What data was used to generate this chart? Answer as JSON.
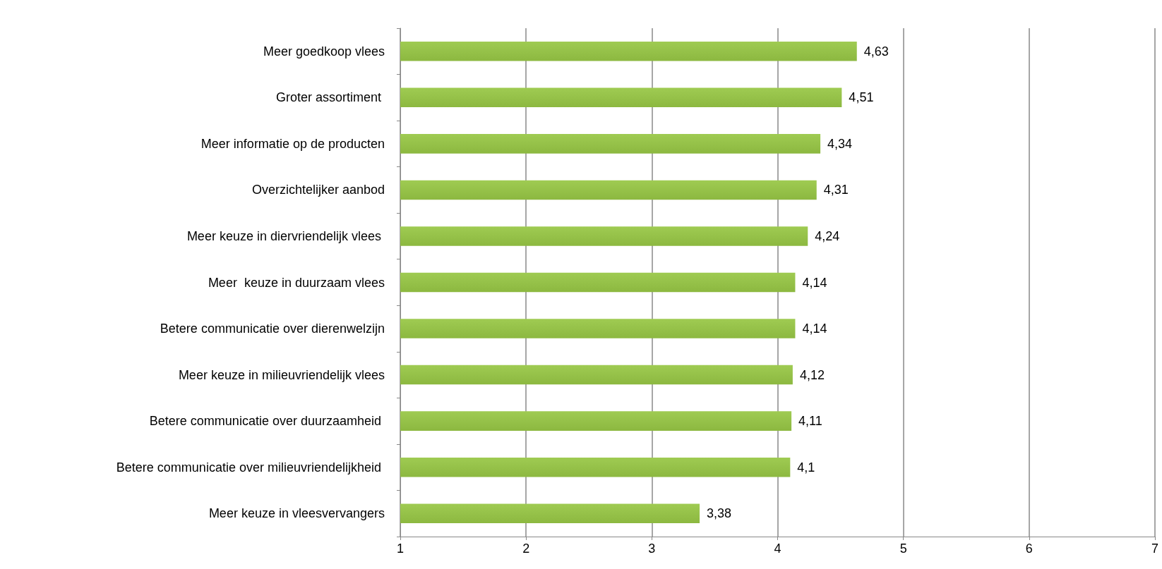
{
  "chart_data": {
    "type": "bar",
    "orientation": "horizontal",
    "categories": [
      "Meer goedkoop vlees",
      "Groter assortiment ",
      "Meer informatie op de producten",
      "Overzichtelijker aanbod",
      "Meer keuze in diervriendelijk vlees ",
      "Meer  keuze in duurzaam vlees",
      "Betere communicatie over dierenwelzijn",
      "Meer keuze in milieuvriendelijk vlees",
      "Betere communicatie over duurzaamheid ",
      "Betere communicatie over milieuvriendelijkheid ",
      "Meer keuze in vleesvervangers"
    ],
    "values": [
      4.63,
      4.51,
      4.34,
      4.31,
      4.24,
      4.14,
      4.14,
      4.12,
      4.11,
      4.1,
      3.38
    ],
    "value_labels": [
      "4,63",
      "4,51",
      "4,34",
      "4,31",
      "4,24",
      "4,14",
      "4,14",
      "4,12",
      "4,11",
      "4,1",
      "3,38"
    ],
    "color": "#8cb840",
    "xlim": [
      1,
      7
    ],
    "xticks": [
      1,
      2,
      3,
      4,
      5,
      6,
      7
    ],
    "grid": "x"
  }
}
